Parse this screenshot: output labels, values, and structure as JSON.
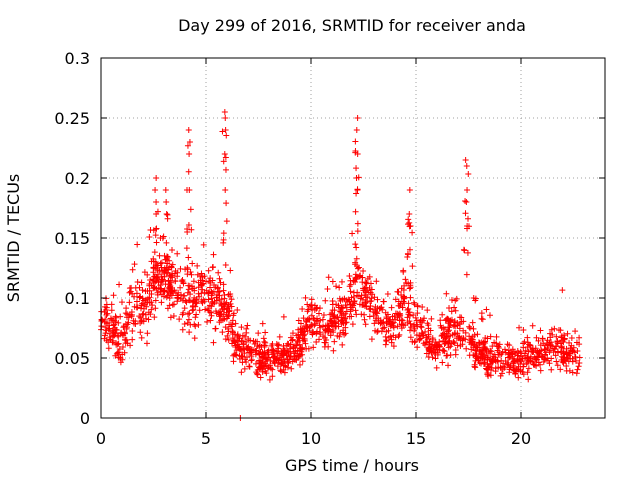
{
  "chart_data": {
    "type": "scatter",
    "title": "Day 299 of 2016, SRMTID for receiver anda",
    "xlabel": "GPS time / hours",
    "ylabel": "SRMTID / TECUs",
    "xlim": [
      0,
      24
    ],
    "ylim": [
      0,
      0.3
    ],
    "x_ticks": [
      0,
      5,
      10,
      15,
      20
    ],
    "x_tick_labels": [
      "0",
      "5",
      "10",
      "15",
      "20"
    ],
    "y_ticks": [
      0,
      0.05,
      0.1,
      0.15,
      0.2,
      0.25,
      0.3
    ],
    "y_tick_labels": [
      "0",
      "0.05",
      "0.1",
      "0.15",
      "0.2",
      "0.25",
      "0.3"
    ],
    "grid": true,
    "marker": "plus",
    "color": "#ff0000",
    "trend": [
      {
        "x": 0.0,
        "y": 0.085,
        "spread": 0.03
      },
      {
        "x": 0.5,
        "y": 0.075,
        "spread": 0.035
      },
      {
        "x": 1.0,
        "y": 0.06,
        "spread": 0.035
      },
      {
        "x": 1.5,
        "y": 0.095,
        "spread": 0.045
      },
      {
        "x": 2.0,
        "y": 0.085,
        "spread": 0.045
      },
      {
        "x": 2.7,
        "y": 0.12,
        "spread": 0.055
      },
      {
        "x": 3.5,
        "y": 0.11,
        "spread": 0.05
      },
      {
        "x": 4.2,
        "y": 0.1,
        "spread": 0.05
      },
      {
        "x": 5.0,
        "y": 0.1,
        "spread": 0.05
      },
      {
        "x": 5.8,
        "y": 0.095,
        "spread": 0.045
      },
      {
        "x": 6.5,
        "y": 0.06,
        "spread": 0.03
      },
      {
        "x": 7.5,
        "y": 0.05,
        "spread": 0.025
      },
      {
        "x": 8.5,
        "y": 0.05,
        "spread": 0.025
      },
      {
        "x": 9.3,
        "y": 0.055,
        "spread": 0.025
      },
      {
        "x": 10.0,
        "y": 0.085,
        "spread": 0.04
      },
      {
        "x": 10.7,
        "y": 0.07,
        "spread": 0.03
      },
      {
        "x": 11.5,
        "y": 0.085,
        "spread": 0.035
      },
      {
        "x": 12.2,
        "y": 0.11,
        "spread": 0.05
      },
      {
        "x": 13.0,
        "y": 0.09,
        "spread": 0.04
      },
      {
        "x": 13.7,
        "y": 0.075,
        "spread": 0.03
      },
      {
        "x": 14.5,
        "y": 0.1,
        "spread": 0.045
      },
      {
        "x": 15.3,
        "y": 0.07,
        "spread": 0.035
      },
      {
        "x": 16.0,
        "y": 0.06,
        "spread": 0.03
      },
      {
        "x": 16.8,
        "y": 0.075,
        "spread": 0.035
      },
      {
        "x": 17.5,
        "y": 0.065,
        "spread": 0.035
      },
      {
        "x": 18.5,
        "y": 0.05,
        "spread": 0.025
      },
      {
        "x": 19.5,
        "y": 0.05,
        "spread": 0.025
      },
      {
        "x": 20.5,
        "y": 0.05,
        "spread": 0.025
      },
      {
        "x": 21.5,
        "y": 0.06,
        "spread": 0.03
      },
      {
        "x": 22.8,
        "y": 0.05,
        "spread": 0.025
      }
    ],
    "spikes": [
      {
        "x": 2.6,
        "y": [
          0.2,
          0.19,
          0.18,
          0.17
        ]
      },
      {
        "x": 3.1,
        "y": [
          0.19,
          0.18,
          0.17
        ]
      },
      {
        "x": 4.2,
        "y": [
          0.24,
          0.23,
          0.22,
          0.19
        ]
      },
      {
        "x": 5.9,
        "y": [
          0.255,
          0.25,
          0.24,
          0.22,
          0.19
        ]
      },
      {
        "x": 6.6,
        "y": [
          0.0
        ]
      },
      {
        "x": 12.2,
        "y": [
          0.25,
          0.24,
          0.22,
          0.2,
          0.19
        ]
      },
      {
        "x": 14.7,
        "y": [
          0.19,
          0.17,
          0.16
        ]
      },
      {
        "x": 17.4,
        "y": [
          0.215,
          0.21,
          0.19,
          0.18,
          0.16
        ]
      }
    ],
    "point_count": 1800
  }
}
